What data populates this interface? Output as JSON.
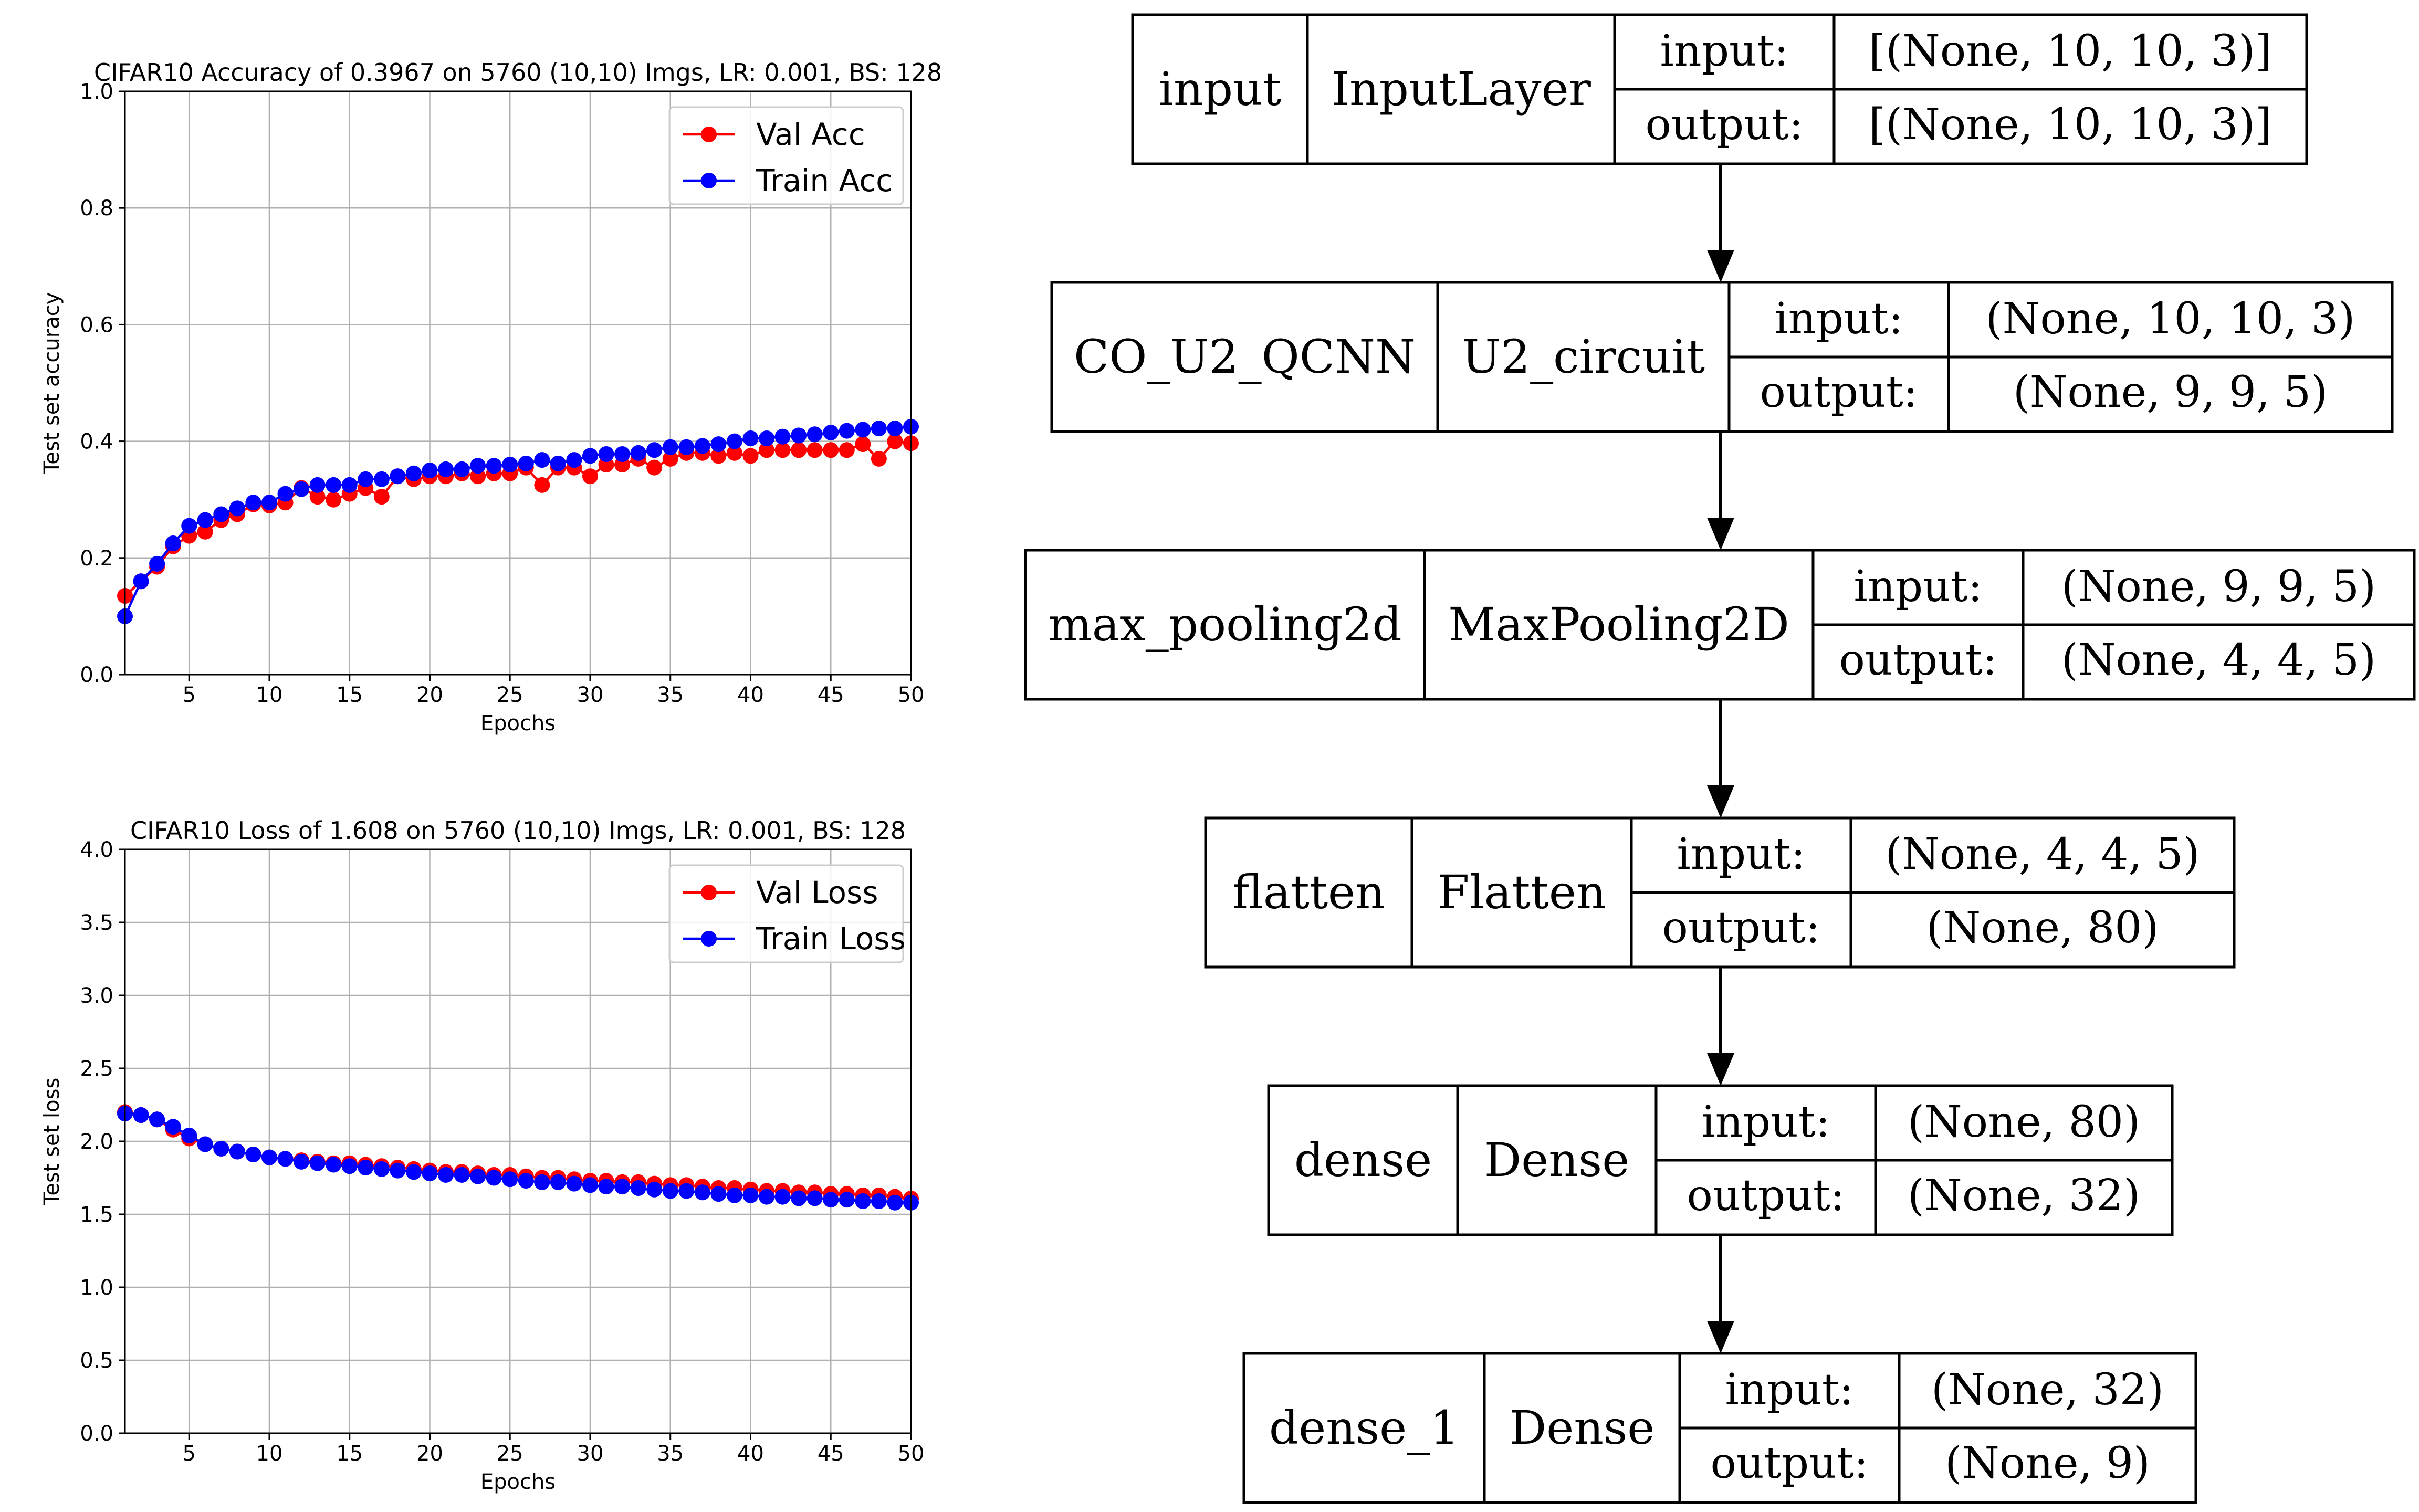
{
  "chart_data": [
    {
      "type": "line",
      "title": "CIFAR10 Accuracy of 0.3967 on 5760 (10,10) Imgs, LR: 0.001, BS: 128",
      "xlabel": "Epochs",
      "ylabel": "Test set accuracy",
      "xlim": [
        1,
        50
      ],
      "ylim": [
        0.0,
        1.0
      ],
      "xticks": [
        5,
        10,
        15,
        20,
        25,
        30,
        35,
        40,
        45,
        50
      ],
      "yticks": [
        "0.0",
        "0.2",
        "0.4",
        "0.6",
        "0.8",
        "1.0"
      ],
      "grid": true,
      "legend": "top-right",
      "x": [
        1,
        2,
        3,
        4,
        5,
        6,
        7,
        8,
        9,
        10,
        11,
        12,
        13,
        14,
        15,
        16,
        17,
        18,
        19,
        20,
        21,
        22,
        23,
        24,
        25,
        26,
        27,
        28,
        29,
        30,
        31,
        32,
        33,
        34,
        35,
        36,
        37,
        38,
        39,
        40,
        41,
        42,
        43,
        44,
        45,
        46,
        47,
        48,
        49,
        50
      ],
      "series": [
        {
          "name": "Val Acc",
          "color": "#ff0000",
          "values": [
            0.135,
            0.16,
            0.185,
            0.22,
            0.238,
            0.245,
            0.265,
            0.275,
            0.292,
            0.29,
            0.295,
            0.32,
            0.305,
            0.3,
            0.31,
            0.32,
            0.305,
            0.34,
            0.335,
            0.34,
            0.34,
            0.345,
            0.34,
            0.345,
            0.345,
            0.355,
            0.325,
            0.355,
            0.355,
            0.34,
            0.36,
            0.36,
            0.37,
            0.355,
            0.37,
            0.38,
            0.38,
            0.375,
            0.38,
            0.375,
            0.385,
            0.385,
            0.385,
            0.385,
            0.385,
            0.385,
            0.395,
            0.37,
            0.4,
            0.3967
          ]
        },
        {
          "name": "Train Acc",
          "color": "#0000ff",
          "values": [
            0.1,
            0.16,
            0.19,
            0.225,
            0.255,
            0.265,
            0.275,
            0.285,
            0.295,
            0.295,
            0.31,
            0.318,
            0.325,
            0.325,
            0.325,
            0.335,
            0.335,
            0.34,
            0.345,
            0.35,
            0.352,
            0.352,
            0.358,
            0.358,
            0.36,
            0.362,
            0.368,
            0.362,
            0.368,
            0.375,
            0.378,
            0.378,
            0.38,
            0.385,
            0.39,
            0.39,
            0.392,
            0.395,
            0.4,
            0.405,
            0.405,
            0.408,
            0.41,
            0.412,
            0.415,
            0.418,
            0.42,
            0.422,
            0.422,
            0.425
          ]
        }
      ]
    },
    {
      "type": "line",
      "title": "CIFAR10 Loss of 1.608 on 5760 (10,10) Imgs, LR: 0.001, BS: 128",
      "xlabel": "Epochs",
      "ylabel": "Test set loss",
      "xlim": [
        1,
        50
      ],
      "ylim": [
        0.0,
        4.0
      ],
      "xticks": [
        5,
        10,
        15,
        20,
        25,
        30,
        35,
        40,
        45,
        50
      ],
      "yticks": [
        "0.0",
        "0.5",
        "1.0",
        "1.5",
        "2.0",
        "2.5",
        "3.0",
        "3.5",
        "4.0"
      ],
      "grid": true,
      "legend": "top-right",
      "x": [
        1,
        2,
        3,
        4,
        5,
        6,
        7,
        8,
        9,
        10,
        11,
        12,
        13,
        14,
        15,
        16,
        17,
        18,
        19,
        20,
        21,
        22,
        23,
        24,
        25,
        26,
        27,
        28,
        29,
        30,
        31,
        32,
        33,
        34,
        35,
        36,
        37,
        38,
        39,
        40,
        41,
        42,
        43,
        44,
        45,
        46,
        47,
        48,
        49,
        50
      ],
      "series": [
        {
          "name": "Val Loss",
          "color": "#ff0000",
          "values": [
            2.2,
            2.18,
            2.15,
            2.08,
            2.02,
            1.98,
            1.95,
            1.93,
            1.91,
            1.89,
            1.88,
            1.87,
            1.86,
            1.85,
            1.85,
            1.84,
            1.83,
            1.82,
            1.81,
            1.8,
            1.79,
            1.79,
            1.78,
            1.77,
            1.77,
            1.76,
            1.75,
            1.75,
            1.74,
            1.73,
            1.73,
            1.72,
            1.72,
            1.71,
            1.7,
            1.7,
            1.69,
            1.68,
            1.68,
            1.67,
            1.66,
            1.66,
            1.65,
            1.65,
            1.64,
            1.64,
            1.63,
            1.63,
            1.62,
            1.608
          ]
        },
        {
          "name": "Train Loss",
          "color": "#0000ff",
          "values": [
            2.19,
            2.18,
            2.15,
            2.1,
            2.04,
            1.98,
            1.95,
            1.93,
            1.91,
            1.89,
            1.88,
            1.86,
            1.85,
            1.84,
            1.83,
            1.82,
            1.81,
            1.8,
            1.79,
            1.78,
            1.77,
            1.77,
            1.76,
            1.75,
            1.74,
            1.73,
            1.72,
            1.72,
            1.71,
            1.7,
            1.69,
            1.69,
            1.68,
            1.67,
            1.66,
            1.66,
            1.65,
            1.64,
            1.63,
            1.63,
            1.62,
            1.62,
            1.61,
            1.61,
            1.6,
            1.6,
            1.59,
            1.59,
            1.58,
            1.58
          ]
        }
      ]
    }
  ],
  "model": {
    "layers": [
      {
        "name": "input",
        "type": "InputLayer",
        "in_label": "input:",
        "in_value": "[(None, 10, 10, 3)]",
        "out_label": "output:",
        "out_value": "[(None, 10, 10, 3)]"
      },
      {
        "name": "CO_U2_QCNN",
        "type": "U2_circuit",
        "in_label": "input:",
        "in_value": "(None, 10, 10, 3)",
        "out_label": "output:",
        "out_value": "(None, 9, 9, 5)"
      },
      {
        "name": "max_pooling2d",
        "type": "MaxPooling2D",
        "in_label": "input:",
        "in_value": "(None, 9, 9, 5)",
        "out_label": "output:",
        "out_value": "(None, 4, 4, 5)"
      },
      {
        "name": "flatten",
        "type": "Flatten",
        "in_label": "input:",
        "in_value": "(None, 4, 4, 5)",
        "out_label": "output:",
        "out_value": "(None, 80)"
      },
      {
        "name": "dense",
        "type": "Dense",
        "in_label": "input:",
        "in_value": "(None, 80)",
        "out_label": "output:",
        "out_value": "(None, 32)"
      },
      {
        "name": "dense_1",
        "type": "Dense",
        "in_label": "input:",
        "in_value": "(None, 32)",
        "out_label": "output:",
        "out_value": "(None, 9)"
      }
    ]
  }
}
